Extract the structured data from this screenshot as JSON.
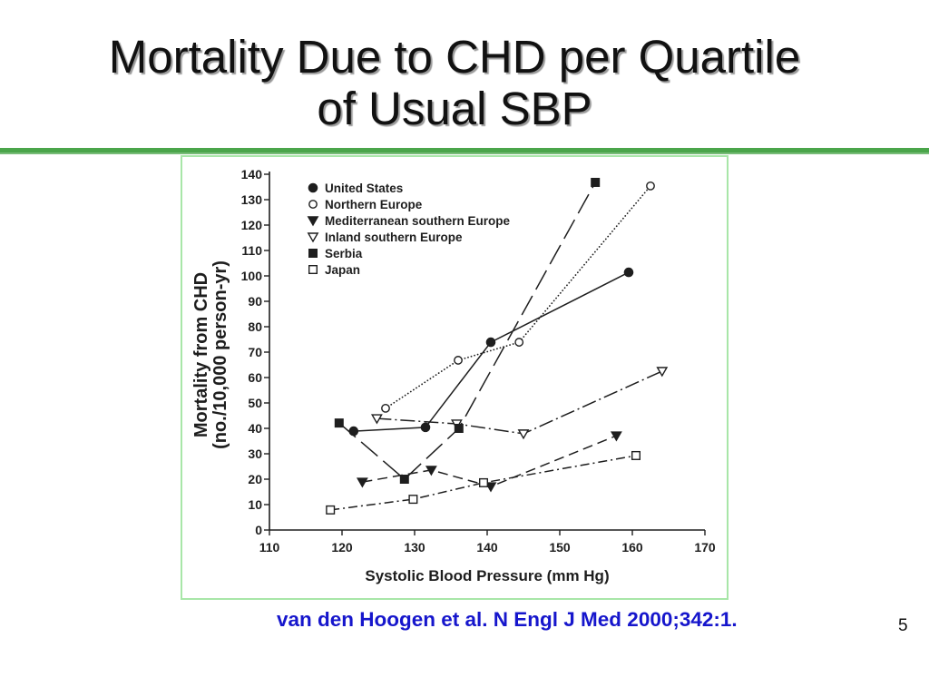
{
  "slide": {
    "title_lines": [
      "Mortality Due to CHD per Quartile",
      "of Usual SBP"
    ],
    "citation": "van den Hoogen et al. N Engl J Med 2000;342:1.",
    "page_number": "5",
    "colors": {
      "background": "#ffffff",
      "title": "#111111",
      "title_shadow": "#9a9a9a",
      "divider": "#4aa54a",
      "chart_frame": "#a8e6a8",
      "citation": "#1616cc",
      "chart_ink": "#1e1e1e"
    }
  },
  "chart_data": {
    "type": "line",
    "xlabel": "Systolic Blood Pressure (mm Hg)",
    "ylabel": [
      "Mortality from CHD",
      "(no./10,000 person-yr)"
    ],
    "xlim": [
      110,
      170
    ],
    "ylim": [
      0,
      140
    ],
    "xticks": [
      110,
      120,
      130,
      140,
      150,
      160,
      170
    ],
    "yticks": [
      0,
      10,
      20,
      30,
      40,
      50,
      60,
      70,
      80,
      90,
      100,
      110,
      120,
      130,
      140
    ],
    "grid": false,
    "legend_position": "top-left",
    "series": [
      {
        "name": "United States",
        "marker": "filled-circle",
        "line_style": "solid",
        "points": [
          [
            121.6,
            38.9
          ],
          [
            131.5,
            40.4
          ],
          [
            140.5,
            73.9
          ],
          [
            159.5,
            101.4
          ]
        ]
      },
      {
        "name": "Northern Europe",
        "marker": "open-circle",
        "line_style": "dotted",
        "points": [
          [
            126.0,
            47.9
          ],
          [
            136.0,
            66.8
          ],
          [
            144.4,
            73.9
          ],
          [
            162.5,
            135.4
          ]
        ]
      },
      {
        "name": "Mediterranean southern Europe",
        "marker": "filled-triangle-down",
        "line_style": "dashed",
        "points": [
          [
            122.8,
            18.9
          ],
          [
            132.3,
            23.6
          ],
          [
            140.5,
            17.1
          ],
          [
            157.8,
            37.1
          ]
        ]
      },
      {
        "name": "Inland southern Europe",
        "marker": "open-triangle-down",
        "line_style": "dash-dot",
        "points": [
          [
            124.8,
            43.9
          ],
          [
            135.8,
            41.8
          ],
          [
            145.0,
            37.9
          ],
          [
            164.1,
            62.5
          ]
        ]
      },
      {
        "name": "Serbia",
        "marker": "filled-square",
        "line_style": "long-dash",
        "points": [
          [
            119.6,
            42.1
          ],
          [
            128.6,
            20.0
          ],
          [
            136.1,
            40.0
          ],
          [
            154.9,
            136.8
          ]
        ]
      },
      {
        "name": "Japan",
        "marker": "open-square",
        "line_style": "dash-dot-short",
        "points": [
          [
            118.4,
            7.9
          ],
          [
            129.8,
            12.1
          ],
          [
            139.5,
            18.6
          ],
          [
            160.5,
            29.3
          ]
        ]
      }
    ]
  }
}
